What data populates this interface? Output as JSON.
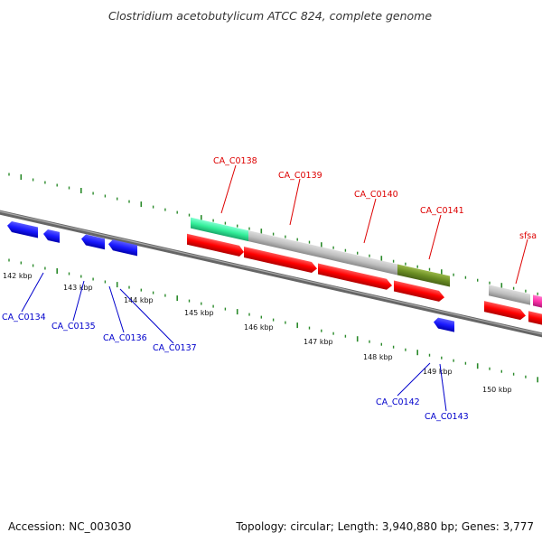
{
  "title": "Clostridium acetobutylicum ATCC 824, complete genome",
  "accession": "Accession: NC_003030",
  "topology": "Topology: circular; Length: 3,940,880 bp; Genes: 3,777",
  "colors": {
    "label_upper": "#dd0000",
    "label_lower": "#0000cc",
    "tick": "#2a8a2a",
    "backbone": "#777777",
    "gene_blue": "#1a1aff",
    "gene_red": "#ff0000",
    "gene_teal": "#33ee99",
    "gene_gray": "#bfbfbf",
    "gene_olive": "#6b8e23",
    "gene_pink": "#ff33aa"
  },
  "kbp_labels": [
    "142 kbp",
    "143 kbp",
    "144 kbp",
    "145 kbp",
    "146 kbp",
    "147 kbp",
    "148 kbp",
    "149 kbp",
    "150 kbp"
  ],
  "upper_labels": [
    "CA_C0138",
    "CA_C0139",
    "CA_C0140",
    "CA_C0141",
    "sfsa"
  ],
  "lower_labels": [
    "CA_C0134",
    "CA_C0135",
    "CA_C0136",
    "CA_C0137",
    "CA_C0142",
    "CA_C0143"
  ]
}
